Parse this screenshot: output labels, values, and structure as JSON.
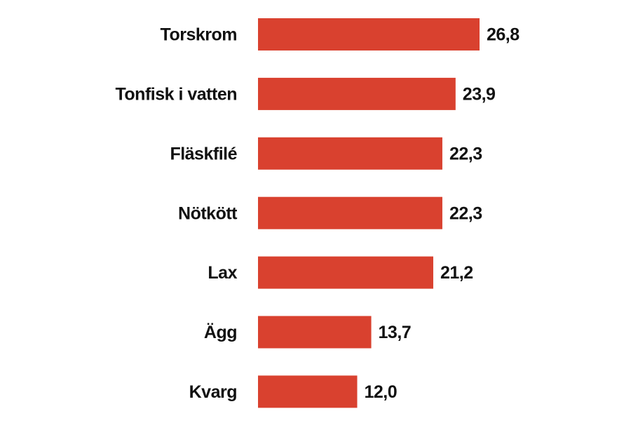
{
  "chart_data": {
    "type": "bar",
    "orientation": "horizontal",
    "categories": [
      "Torskrom",
      "Tonfisk i vatten",
      "Fläskfilé",
      "Nötkött",
      "Lax",
      "Ägg",
      "Kvarg"
    ],
    "values": [
      26.8,
      23.9,
      22.3,
      22.3,
      21.2,
      13.7,
      12.0
    ],
    "value_labels": [
      "26,8",
      "23,9",
      "22,3",
      "22,3",
      "21,2",
      "13,7",
      "12,0"
    ],
    "color": "#d9412f"
  }
}
